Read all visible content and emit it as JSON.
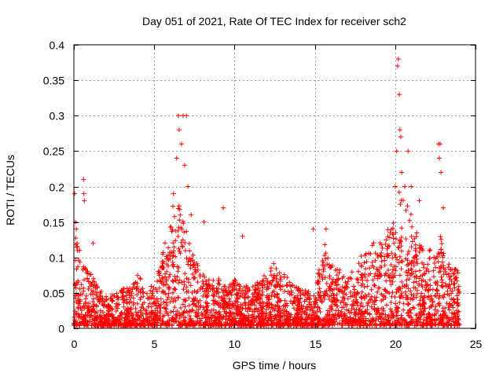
{
  "chart_data": {
    "type": "scatter",
    "title": "Day 051 of 2021, Rate Of TEC Index for receiver sch2",
    "xlabel": "GPS time / hours",
    "ylabel": "ROTI / TECUs",
    "xlim": [
      0,
      25
    ],
    "ylim": [
      0,
      0.4
    ],
    "x_ticks": [
      0,
      5,
      10,
      15,
      20,
      25
    ],
    "x_tick_labels": [
      "0",
      "5",
      "10",
      "15",
      "20",
      "25"
    ],
    "y_ticks": [
      0,
      0.05,
      0.1,
      0.15,
      0.2,
      0.25,
      0.3,
      0.35,
      0.4
    ],
    "y_tick_labels": [
      "0",
      "0.05",
      "0.1",
      "0.15",
      "0.2",
      "0.25",
      "0.3",
      "0.35",
      "0.4"
    ],
    "grid": true,
    "marker": "+",
    "color": "#ff0000",
    "envelope": {
      "description": "approximate upper envelope of the dense ROTI scatter (x in hours, y in TECU/min)",
      "x": [
        0,
        0.1,
        0.3,
        0.6,
        1.0,
        1.5,
        2.0,
        2.5,
        3.0,
        3.5,
        4.0,
        4.5,
        5.0,
        5.5,
        6.0,
        6.3,
        6.6,
        7.0,
        7.5,
        8.0,
        8.5,
        9.0,
        9.5,
        10.0,
        10.5,
        11.0,
        11.5,
        12.0,
        12.5,
        13.0,
        13.5,
        14.0,
        14.5,
        15.0,
        15.3,
        15.6,
        16.0,
        16.5,
        17.0,
        17.5,
        18.0,
        18.5,
        19.0,
        19.5,
        20.0,
        20.3,
        20.6,
        21.0,
        21.5,
        22.0,
        22.5,
        22.8,
        23.2,
        23.6,
        24.0
      ],
      "y": [
        0.06,
        0.13,
        0.11,
        0.08,
        0.07,
        0.05,
        0.04,
        0.04,
        0.05,
        0.05,
        0.07,
        0.04,
        0.06,
        0.09,
        0.14,
        0.17,
        0.16,
        0.12,
        0.09,
        0.07,
        0.06,
        0.06,
        0.05,
        0.06,
        0.05,
        0.05,
        0.06,
        0.07,
        0.08,
        0.07,
        0.06,
        0.05,
        0.05,
        0.04,
        0.08,
        0.1,
        0.08,
        0.07,
        0.06,
        0.07,
        0.09,
        0.1,
        0.11,
        0.12,
        0.14,
        0.17,
        0.16,
        0.15,
        0.11,
        0.1,
        0.09,
        0.12,
        0.08,
        0.08,
        0.07
      ]
    },
    "outliers": {
      "x": [
        0.05,
        0.1,
        0.15,
        0.2,
        0.35,
        0.6,
        0.62,
        0.65,
        1.2,
        6.2,
        6.4,
        6.5,
        6.55,
        6.7,
        6.8,
        6.9,
        7.0,
        7.1,
        7.3,
        8.1,
        9.3,
        10.5,
        14.9,
        15.7,
        20.0,
        20.1,
        20.15,
        20.2,
        20.25,
        20.3,
        20.35,
        20.4,
        20.6,
        20.8,
        21.0,
        21.5,
        22.7,
        22.75,
        22.8,
        22.85,
        23.0
      ],
      "y": [
        0.19,
        0.15,
        0.14,
        0.12,
        0.11,
        0.21,
        0.19,
        0.18,
        0.12,
        0.19,
        0.24,
        0.3,
        0.28,
        0.26,
        0.3,
        0.23,
        0.3,
        0.2,
        0.16,
        0.15,
        0.17,
        0.13,
        0.14,
        0.14,
        0.2,
        0.25,
        0.37,
        0.38,
        0.33,
        0.28,
        0.27,
        0.22,
        0.2,
        0.25,
        0.2,
        0.18,
        0.26,
        0.24,
        0.26,
        0.22,
        0.17
      ]
    }
  }
}
